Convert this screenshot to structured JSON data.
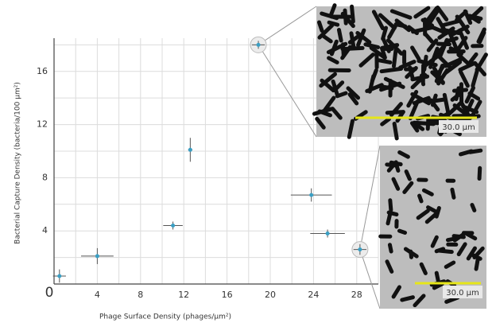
{
  "chart_data": {
    "type": "scatter",
    "x_label": "Phage Surface Density (phages/μm²)",
    "y_label": "Bacterial Capture Density (bacteria/100 μm²)",
    "x": [
      0.5,
      4.0,
      11.0,
      12.6,
      18.9,
      23.8,
      25.3,
      28.3
    ],
    "values": [
      0.6,
      2.1,
      4.4,
      10.1,
      18.0,
      6.7,
      3.8,
      2.6
    ],
    "x_err": [
      0.6,
      1.5,
      0.9,
      0.2,
      0.6,
      1.9,
      1.6,
      0.6
    ],
    "y_err": [
      0.5,
      0.6,
      0.3,
      0.9,
      0.3,
      0.5,
      0.3,
      0.4
    ],
    "color": "#3a9fc4",
    "xlim": [
      0,
      30
    ],
    "ylim": [
      0,
      18.5
    ],
    "xticks": [
      0,
      4,
      8,
      12,
      16,
      20,
      24,
      28
    ],
    "yticks": [
      4,
      8,
      12,
      16
    ],
    "grid": true,
    "annotations": [
      "30.0 μm",
      "30.0 μm"
    ]
  }
}
